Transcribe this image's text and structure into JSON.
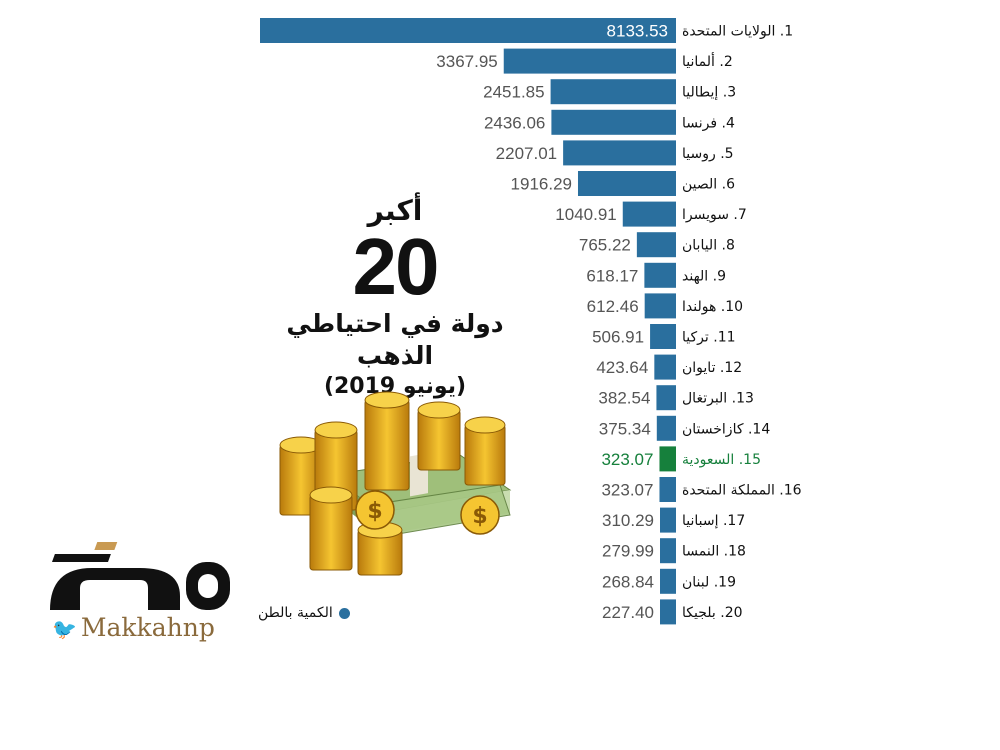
{
  "title": {
    "line1": "أكبر",
    "number": "20",
    "line2": "دولة في احتياطي الذهب",
    "line3": "(يونيو 2019)"
  },
  "legend": {
    "label": "الكمية بالطن",
    "color": "#2a6f9e"
  },
  "brand": {
    "logo_text": "مكة",
    "handle": "Makkahnp"
  },
  "colors": {
    "bar": "#2a6f9e",
    "highlight": "#16803c",
    "label": "#111111",
    "value": "#555555"
  },
  "chart_data": {
    "type": "bar",
    "orientation": "horizontal",
    "unit": "الكمية بالطن",
    "highlight_index": 14,
    "categories": [
      "1. الولايات المتحدة",
      "2. ألمانيا",
      "3. إيطاليا",
      "4. فرنسا",
      "5. روسيا",
      "6. الصين",
      "7. سويسرا",
      "8. اليابان",
      "9. الهند",
      "10. هولندا",
      "11. تركيا",
      "12. تايوان",
      "13. البرتغال",
      "14. كازاخستان",
      "15. السعودية",
      "16. المملكة المتحدة",
      "17. إسبانيا",
      "18. النمسا",
      "19. لبنان",
      "20. بلجيكا"
    ],
    "values": [
      8133.53,
      3367.95,
      2451.85,
      2436.06,
      2207.01,
      1916.29,
      1040.91,
      765.22,
      618.17,
      612.46,
      506.91,
      423.64,
      382.54,
      375.34,
      323.07,
      323.07,
      310.29,
      279.99,
      268.84,
      227.4
    ],
    "value_labels": [
      "8133.53",
      "3367.95",
      "2451.85",
      "2436.06",
      "2207.01",
      "1916.29",
      "1040.91",
      "765.22",
      "618.17",
      "612.46",
      "506.91",
      "423.64",
      "382.54",
      "375.34",
      "323.07",
      "323.07",
      "310.29",
      "279.99",
      "268.84",
      "227.40"
    ]
  }
}
